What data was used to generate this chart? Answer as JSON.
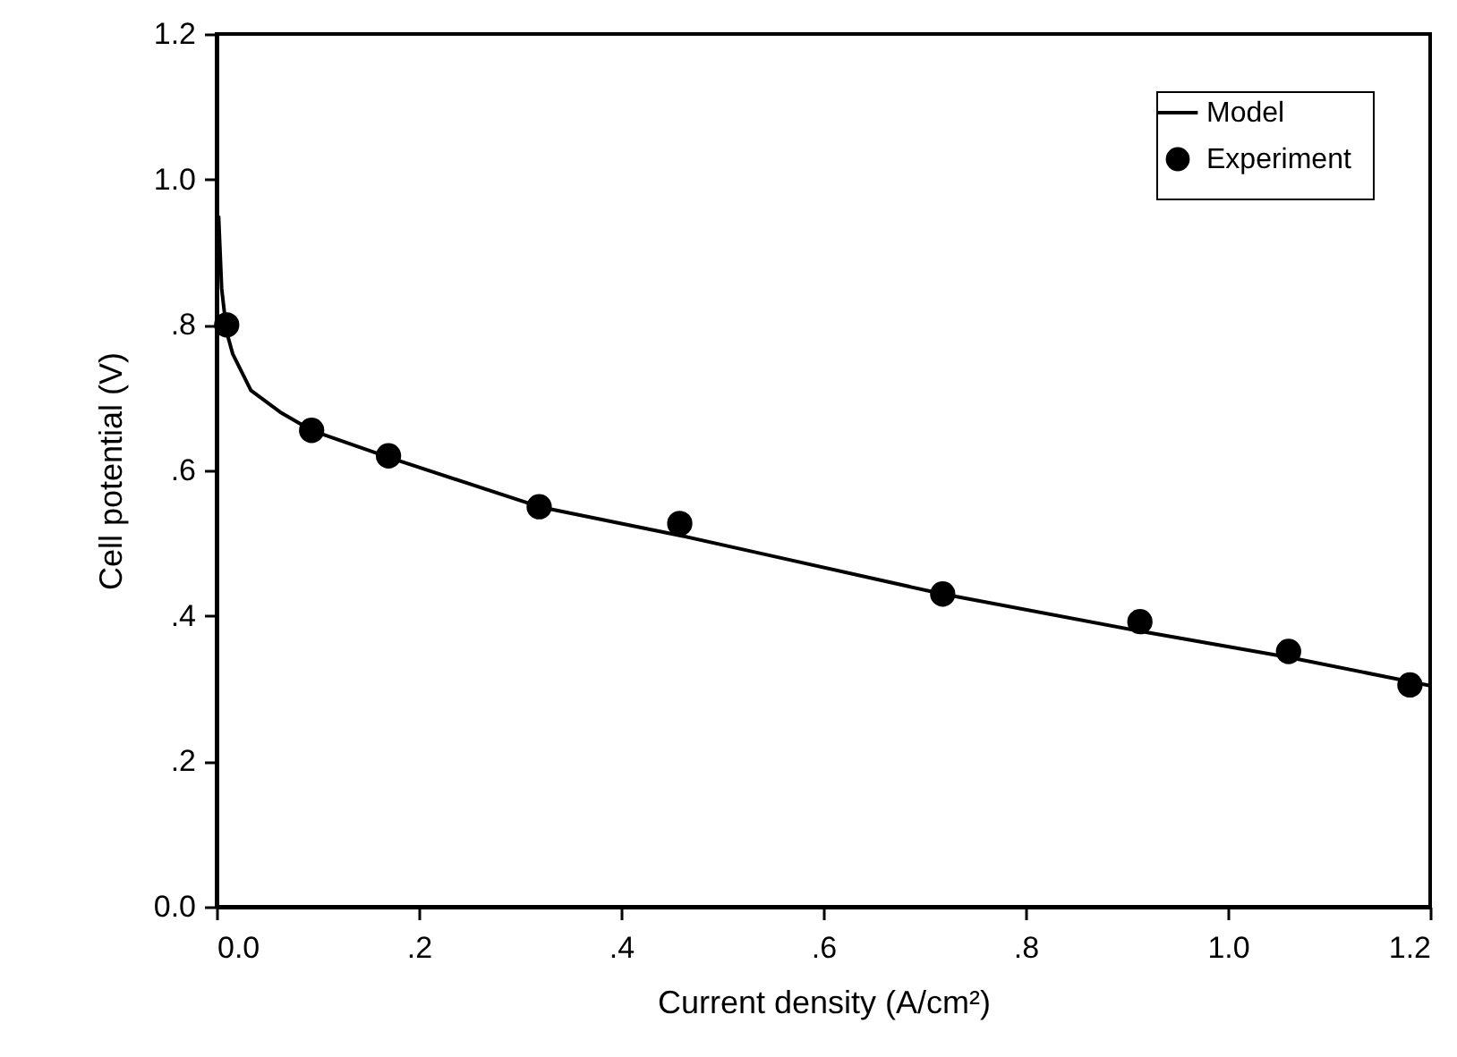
{
  "chart_data": {
    "type": "line",
    "xlabel": "Current density (A/cm²)",
    "ylabel": "Cell potential (V)",
    "xlim": [
      0,
      1.2
    ],
    "ylim": [
      0,
      1.2
    ],
    "xticks": [
      {
        "value": 0,
        "label": "0.0"
      },
      {
        "value": 0.2,
        "label": ".2"
      },
      {
        "value": 0.4,
        "label": ".4"
      },
      {
        "value": 0.6,
        "label": ".6"
      },
      {
        "value": 0.8,
        "label": ".8"
      },
      {
        "value": 1,
        "label": "1.0"
      },
      {
        "value": 1.2,
        "label": "1.2"
      }
    ],
    "yticks": [
      {
        "value": 0,
        "label": "0.0"
      },
      {
        "value": 0.2,
        "label": ".2"
      },
      {
        "value": 0.4,
        "label": ".4"
      },
      {
        "value": 0.6,
        "label": ".6"
      },
      {
        "value": 0.8,
        "label": ".8"
      },
      {
        "value": 1,
        "label": "1.0"
      },
      {
        "value": 1.2,
        "label": "1.2"
      }
    ],
    "grid": false,
    "legend": "top right",
    "series": [
      {
        "name": "Model",
        "color": "#000000",
        "line_style": "solid",
        "x": [
          0.002,
          0.005,
          0.01,
          0.016,
          0.034,
          0.063,
          0.094,
          0.17,
          0.319,
          0.46,
          0.547,
          0.718,
          0.913,
          1.06,
          1.2
        ],
        "values": [
          0.95,
          0.85,
          0.79,
          0.76,
          0.71,
          0.68,
          0.655,
          0.618,
          0.55,
          0.51,
          0.483,
          0.43,
          0.379,
          0.343,
          0.304
        ]
      },
      {
        "name": "Experiment",
        "type": "scatter",
        "color": "#000000",
        "marker": "circle",
        "x": [
          0.01,
          0.094,
          0.17,
          0.319,
          0.458,
          0.718,
          0.913,
          1.06,
          1.18
        ],
        "values": [
          0.8,
          0.655,
          0.62,
          0.55,
          0.527,
          0.43,
          0.392,
          0.351,
          0.305
        ]
      }
    ]
  }
}
